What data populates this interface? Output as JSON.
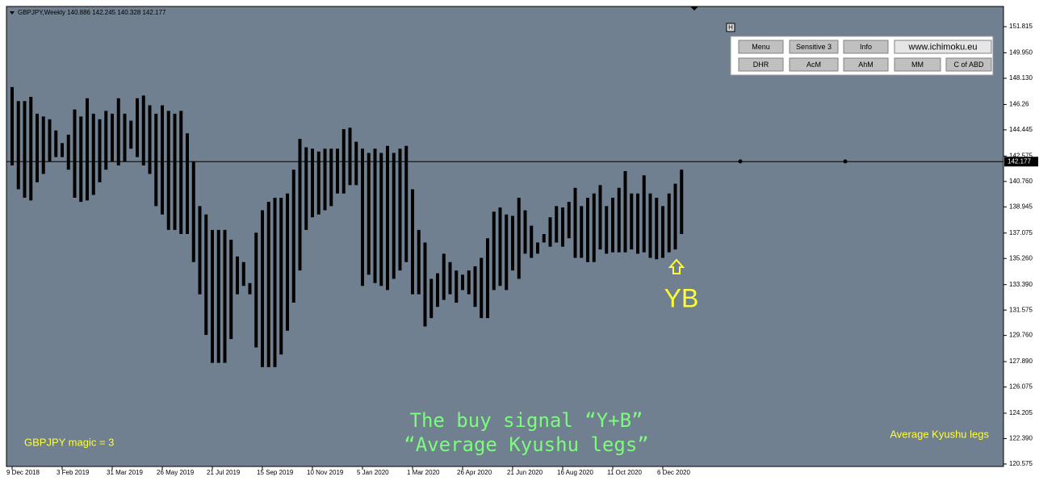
{
  "header": "GBPJPY,Weekly  140.886 142.245 140.328 142.177",
  "buttons": [
    [
      "Menu",
      "Sensitive 3",
      "Info",
      "www.ichimoku.eu"
    ],
    [
      "DHR",
      "AcM",
      "AhM",
      "MM",
      "C of ABD"
    ]
  ],
  "panel_toggle": "H",
  "signal_label": "YB",
  "caption": [
    "The buy signal “Y+B”",
    "“Average Kyushu legs”"
  ],
  "left_note": "GBPJPY  magic = 3",
  "right_note": "Average Kyushu legs",
  "chart_data": {
    "type": "range_bar",
    "color": "#000000",
    "price_line": 142.177,
    "ylim": [
      120.4,
      153.26
    ],
    "yticks": [
      151.815,
      {
        "value": 149.95,
        "label": "149.950"
      },
      {
        "value": 148.13,
        "label": "148.130"
      },
      146.26,
      144.445,
      142.575,
      {
        "value": 140.76,
        "label": "140.760"
      },
      138.945,
      137.075,
      {
        "value": 135.26,
        "label": "135.260"
      },
      {
        "value": 133.39,
        "label": "133.390"
      },
      131.575,
      {
        "value": 129.76,
        "label": "129.760"
      },
      {
        "value": 127.89,
        "label": "127.890"
      },
      126.075,
      124.205,
      {
        "value": 122.39,
        "label": "122.390"
      },
      120.575
    ],
    "categories": [
      "9 Dec 2018",
      null,
      null,
      null,
      null,
      null,
      null,
      null,
      "3 Feb 2019",
      null,
      null,
      null,
      null,
      null,
      null,
      null,
      "31 Mar 2019",
      null,
      null,
      null,
      null,
      null,
      null,
      null,
      "26 May 2019",
      null,
      null,
      null,
      null,
      null,
      null,
      null,
      "21 Jul 2019",
      null,
      null,
      null,
      null,
      null,
      null,
      null,
      "15 Sep 2019",
      null,
      null,
      null,
      null,
      null,
      null,
      null,
      "10 Nov 2019",
      null,
      null,
      null,
      null,
      null,
      null,
      null,
      "5 Jan 2020",
      null,
      null,
      null,
      null,
      null,
      null,
      null,
      "1 Mar 2020",
      null,
      null,
      null,
      null,
      null,
      null,
      null,
      "26 Apr 2020",
      null,
      null,
      null,
      null,
      null,
      null,
      null,
      "21 Jun 2020",
      null,
      null,
      null,
      null,
      null,
      null,
      null,
      "16 Aug 2020",
      null,
      null,
      null,
      null,
      null,
      null,
      null,
      "11 Oct 2020",
      null,
      null,
      null,
      null,
      null,
      null,
      null,
      "6 Dec 2020",
      null,
      null,
      null
    ],
    "highs": [
      147.5,
      146.5,
      146.5,
      146.8,
      145.6,
      145.4,
      145.2,
      144.4,
      143.5,
      144.1,
      145.9,
      145.4,
      146.7,
      145.6,
      145.2,
      145.8,
      145.6,
      146.7,
      145.6,
      145.1,
      146.7,
      146.9,
      146.2,
      145.6,
      146.2,
      145.8,
      145.6,
      145.8,
      144.2,
      142.2,
      139.0,
      138.4,
      137.3,
      137.3,
      137.3,
      136.6,
      135.4,
      135.0,
      133.5,
      137.1,
      138.7,
      139.3,
      139.6,
      139.6,
      139.9,
      141.6,
      143.8,
      143.2,
      143.1,
      142.9,
      143.1,
      143.1,
      143.1,
      144.5,
      144.6,
      143.6,
      143.1,
      142.8,
      143.1,
      142.8,
      143.3,
      142.8,
      143.1,
      143.3,
      140.2,
      137.3,
      136.4,
      133.8,
      134.2,
      135.6,
      135.0,
      134.4,
      134.1,
      134.4,
      134.7,
      135.3,
      136.7,
      138.6,
      138.9,
      138.4,
      138.3,
      139.6,
      138.7,
      137.6,
      136.4,
      137.0,
      138.2,
      139.0,
      138.9,
      139.3,
      140.3,
      139.0,
      139.6,
      139.9,
      140.5,
      139.0,
      139.6,
      140.3,
      141.5,
      139.9,
      139.9,
      141.2,
      139.9,
      139.6,
      139.0,
      139.9,
      140.6,
      141.6
    ],
    "lows": [
      141.9,
      140.2,
      139.6,
      139.4,
      140.7,
      141.3,
      142.2,
      142.5,
      142.5,
      141.6,
      139.6,
      139.3,
      139.4,
      139.8,
      140.7,
      141.6,
      142.2,
      141.9,
      142.2,
      143.1,
      142.5,
      141.9,
      141.3,
      139.0,
      138.4,
      137.3,
      137.3,
      137.0,
      137.0,
      135.0,
      132.7,
      129.8,
      127.8,
      127.8,
      127.8,
      129.5,
      132.7,
      133.3,
      132.7,
      128.9,
      127.5,
      127.5,
      127.5,
      128.4,
      130.1,
      132.1,
      134.4,
      137.3,
      138.2,
      138.4,
      138.7,
      139.0,
      139.9,
      139.9,
      140.5,
      140.5,
      133.3,
      134.1,
      133.5,
      133.3,
      133.0,
      133.8,
      134.4,
      135.0,
      132.7,
      132.7,
      130.4,
      131.0,
      131.8,
      132.3,
      132.7,
      132.1,
      133.0,
      132.7,
      131.8,
      131.0,
      131.0,
      133.0,
      133.3,
      133.0,
      134.4,
      133.8,
      135.6,
      135.3,
      135.6,
      136.4,
      136.1,
      136.4,
      136.1,
      136.7,
      135.3,
      135.3,
      135.0,
      135.0,
      135.9,
      135.6,
      135.7,
      135.7,
      135.7,
      135.9,
      135.6,
      135.7,
      135.3,
      135.2,
      135.3,
      135.7,
      135.9,
      137.0
    ]
  }
}
